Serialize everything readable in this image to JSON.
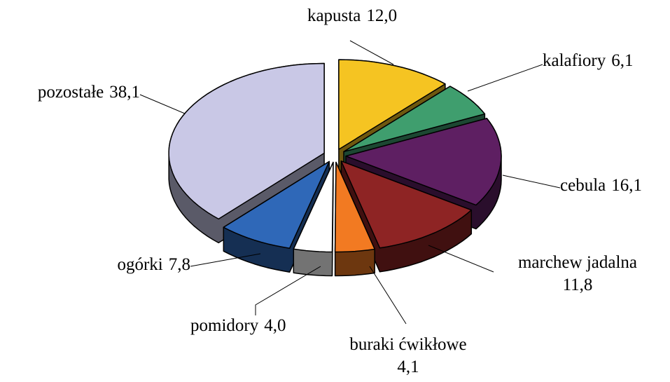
{
  "chart_data": {
    "type": "pie",
    "categories": [
      "kapusta",
      "kalafiory",
      "cebula",
      "marchew jadalna",
      "buraki ćwikłowe",
      "pomidory",
      "ogórki",
      "pozostałe"
    ],
    "values": [
      12.0,
      6.1,
      16.1,
      11.8,
      4.1,
      4.0,
      7.8,
      38.1
    ],
    "value_labels": [
      "12,0",
      "6,1",
      "16,1",
      "11,8",
      "4,1",
      "4,0",
      "7,8",
      "38,1"
    ],
    "colors": [
      "#f5c422",
      "#3f9e6e",
      "#5e1f62",
      "#8e2424",
      "#f27a22",
      "#ffffff",
      "#2f68b8",
      "#c9c8e6"
    ]
  }
}
